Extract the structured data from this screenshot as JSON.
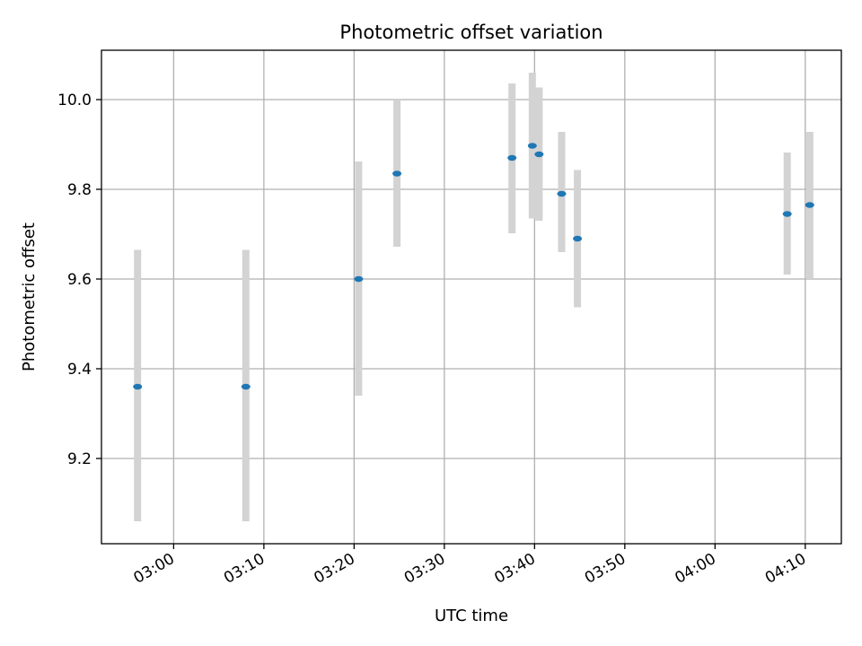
{
  "chart_data": {
    "type": "scatter",
    "title": "Photometric offset variation",
    "xlabel": "UTC time",
    "ylabel": "Photometric offset",
    "x_axis": {
      "kind": "time",
      "range": [
        "02:52",
        "04:14"
      ],
      "ticks": [
        "03:00",
        "03:10",
        "03:20",
        "03:30",
        "03:40",
        "03:50",
        "04:00",
        "04:10"
      ]
    },
    "y_axis": {
      "range": [
        9.01,
        10.11
      ],
      "ticks": [
        9.2,
        9.4,
        9.6,
        9.8,
        10.0
      ],
      "tick_labels": [
        "9.2",
        "9.4",
        "9.6",
        "9.8",
        "10.0"
      ]
    },
    "grid": true,
    "legend": "none",
    "colors": {
      "point": "#1f77b4",
      "errorbar": "#d3d3d3",
      "grid": "#b0b0b0",
      "axes": "#000000"
    },
    "points": [
      {
        "time": "02:56",
        "value": 9.36,
        "low": 9.06,
        "high": 9.665
      },
      {
        "time": "03:08",
        "value": 9.36,
        "low": 9.06,
        "high": 9.665
      },
      {
        "time": "03:20:30",
        "value": 9.6,
        "low": 9.34,
        "high": 9.862
      },
      {
        "time": "03:24:45",
        "value": 9.835,
        "low": 9.672,
        "high": 10.0
      },
      {
        "time": "03:37:30",
        "value": 9.87,
        "low": 9.702,
        "high": 10.036
      },
      {
        "time": "03:39:45",
        "value": 9.897,
        "low": 9.735,
        "high": 10.06
      },
      {
        "time": "03:40:30",
        "value": 9.878,
        "low": 9.73,
        "high": 10.027
      },
      {
        "time": "03:43",
        "value": 9.79,
        "low": 9.66,
        "high": 9.928
      },
      {
        "time": "03:44:45",
        "value": 9.69,
        "low": 9.537,
        "high": 9.843
      },
      {
        "time": "04:08",
        "value": 9.745,
        "low": 9.61,
        "high": 9.882
      },
      {
        "time": "04:10:30",
        "value": 9.765,
        "low": 9.6,
        "high": 9.928
      }
    ]
  }
}
